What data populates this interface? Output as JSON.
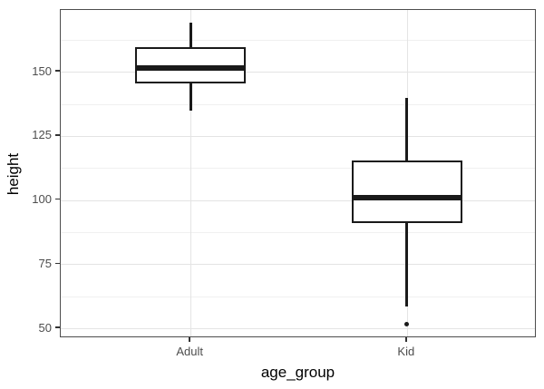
{
  "chart_data": {
    "type": "boxplot",
    "title": "",
    "xlabel": "age_group",
    "ylabel": "height",
    "categories": [
      "Adult",
      "Kid"
    ],
    "series": [
      {
        "name": "Adult",
        "whisker_min": 135,
        "q1": 145.5,
        "median": 151.5,
        "q3": 159.5,
        "whisker_max": 169,
        "outliers": []
      },
      {
        "name": "Kid",
        "whisker_min": 58.5,
        "q1": 91,
        "median": 101,
        "q3": 115.5,
        "whisker_max": 140,
        "outliers": [
          51.5
        ]
      }
    ],
    "y_ticks": [
      50,
      75,
      100,
      125,
      150
    ],
    "y_minor_gridlines": [
      62.5,
      87.5,
      112.5,
      137.5,
      162.5
    ],
    "ylim": [
      46.2,
      174.1
    ],
    "grid": true,
    "legend_position": "none",
    "theme": {
      "box_stroke": "#1a1a1a",
      "box_fill": "#ffffff",
      "grid_major_color": "#e4e4e4",
      "grid_minor_color": "#f0f0f0",
      "panel_border_color": "#4d4d4d",
      "tick_label_color": "#4d4d4d",
      "axis_title_color": "#000000",
      "background_color": "#ffffff"
    }
  }
}
